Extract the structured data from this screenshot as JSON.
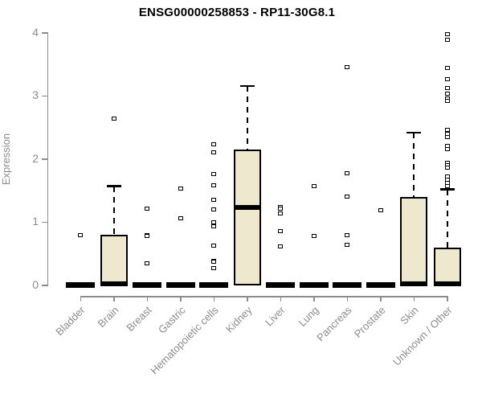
{
  "chart_data": {
    "type": "boxplot",
    "title": "ENSG00000258853 - RP11-30G8.1",
    "ylabel": "Expression",
    "ylim": [
      0,
      4
    ],
    "yticks": [
      "0",
      "1",
      "2",
      "3",
      "4"
    ],
    "grid": false,
    "legend": "none",
    "categories": [
      "Bladder",
      "Brain",
      "Breast",
      "Gastric",
      "Hematopoietic cells",
      "Kidney",
      "Liver",
      "Lung",
      "Pancreas",
      "Prostate",
      "Skin",
      "Unknown / Other"
    ],
    "series": [
      {
        "name": "Bladder",
        "q1": 0,
        "median": 0.02,
        "q3": 0,
        "whisker_low": 0,
        "whisker_high": 0,
        "outliers": [
          0.79
        ]
      },
      {
        "name": "Brain",
        "q1": 0,
        "median": 0.02,
        "q3": 0.8,
        "whisker_low": 0,
        "whisker_high": 1.57,
        "outliers": [
          2.64
        ]
      },
      {
        "name": "Breast",
        "q1": 0,
        "median": 0.02,
        "q3": 0,
        "whisker_low": 0,
        "whisker_high": 0,
        "outliers": [
          1.22,
          0.8,
          0.78,
          0.35
        ]
      },
      {
        "name": "Gastric",
        "q1": 0,
        "median": 0.02,
        "q3": 0,
        "whisker_low": 0,
        "whisker_high": 0,
        "outliers": [
          1.54,
          1.06
        ]
      },
      {
        "name": "Hematopoietic cells",
        "q1": 0,
        "median": 0.02,
        "q3": 0,
        "whisker_low": 0,
        "whisker_high": 0,
        "outliers": [
          2.24,
          2.11,
          1.76,
          1.58,
          1.36,
          1.2,
          1.0,
          0.93,
          0.63,
          0.39,
          0.37,
          0.27
        ]
      },
      {
        "name": "Kidney",
        "q1": 0,
        "median": 1.23,
        "q3": 2.15,
        "whisker_low": 0,
        "whisker_high": 3.16,
        "outliers": []
      },
      {
        "name": "Liver",
        "q1": 0,
        "median": 0.02,
        "q3": 0,
        "whisker_low": 0,
        "whisker_high": 0,
        "outliers": [
          1.24,
          1.22,
          1.14,
          0.86,
          0.62
        ]
      },
      {
        "name": "Lung",
        "q1": 0,
        "median": 0.02,
        "q3": 0,
        "whisker_low": 0,
        "whisker_high": 0,
        "outliers": [
          1.57,
          0.78
        ]
      },
      {
        "name": "Pancreas",
        "q1": 0,
        "median": 0.02,
        "q3": 0,
        "whisker_low": 0,
        "whisker_high": 0,
        "outliers": [
          3.46,
          1.78,
          1.41,
          0.79,
          0.64
        ]
      },
      {
        "name": "Prostate",
        "q1": 0,
        "median": 0.02,
        "q3": 0,
        "whisker_low": 0,
        "whisker_high": 0,
        "outliers": [
          1.19
        ]
      },
      {
        "name": "Skin",
        "q1": 0,
        "median": 0.02,
        "q3": 1.4,
        "whisker_low": 0,
        "whisker_high": 2.42,
        "outliers": []
      },
      {
        "name": "Unknown / Other",
        "q1": 0,
        "median": 0.02,
        "q3": 0.6,
        "whisker_low": 0,
        "whisker_high": 1.52,
        "outliers": [
          3.98,
          3.89,
          3.44,
          3.27,
          3.13,
          3.04,
          2.96,
          2.92,
          2.46,
          2.4,
          2.35,
          2.21,
          2.16,
          1.94,
          1.9,
          1.86,
          1.72,
          1.67,
          1.62,
          1.57
        ]
      }
    ],
    "styles": {
      "box_fill": "#ede8ce",
      "box_border": "#000000",
      "median_color": "#000000",
      "whisker_color": "#000000",
      "outlier_fill": "#ffffff",
      "outlier_border": "#000000",
      "axis_color": "#8c8c8c",
      "title_color": "#000000"
    }
  }
}
